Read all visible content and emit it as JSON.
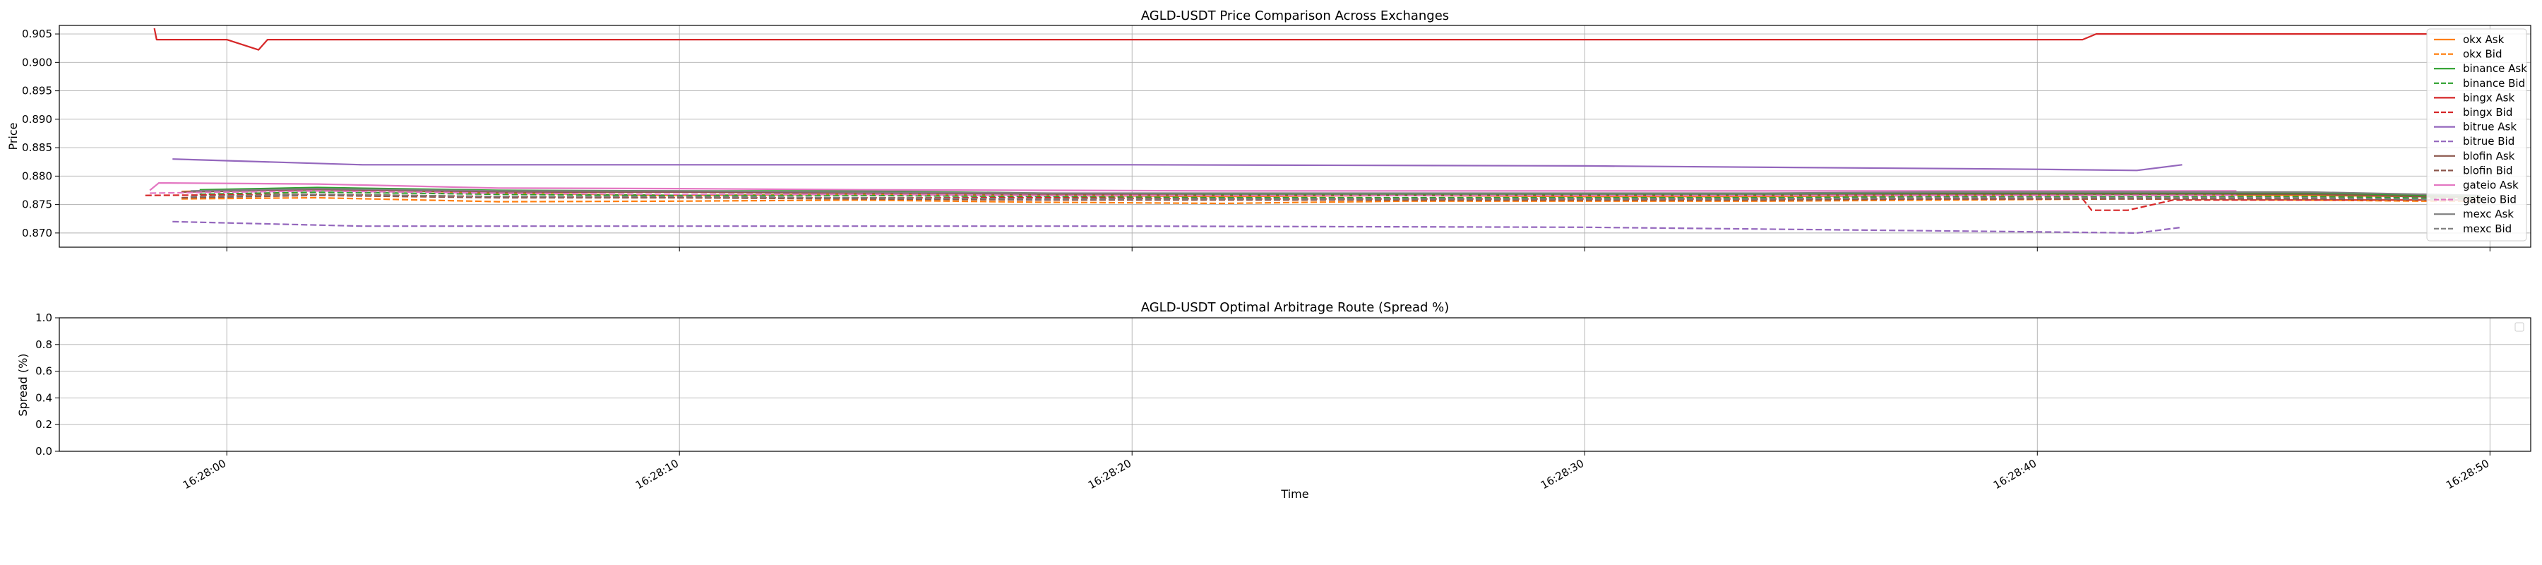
{
  "chart_data": [
    {
      "type": "line",
      "title": "AGLD-USDT Price Comparison Across Exchanges",
      "xlabel": "",
      "ylabel": "Price",
      "x_unit": "seconds",
      "xlim": [
        56.3,
        110.9
      ],
      "ylim": [
        0.8675,
        0.9065
      ],
      "yticks": [
        0.87,
        0.875,
        0.88,
        0.885,
        0.89,
        0.895,
        0.9,
        0.905
      ],
      "ytick_labels": [
        "0.870",
        "0.875",
        "0.880",
        "0.885",
        "0.890",
        "0.895",
        "0.900",
        "0.905"
      ],
      "xticks": [
        60,
        70,
        80,
        90,
        100,
        110
      ],
      "grid": true,
      "legend_position": "upper right",
      "series": [
        {
          "name": "okx Ask",
          "color": "#ff7f0e",
          "dash": "solid",
          "x": [
            59.0,
            62,
            66,
            70,
            74,
            78,
            82,
            86,
            90,
            94,
            98,
            102,
            106,
            108.5,
            109.8
          ],
          "y": [
            0.8773,
            0.8778,
            0.877,
            0.8766,
            0.8768,
            0.8766,
            0.8764,
            0.8766,
            0.8764,
            0.8764,
            0.8766,
            0.8768,
            0.8766,
            0.8764,
            0.8762
          ]
        },
        {
          "name": "okx Bid",
          "color": "#ff7f0e",
          "dash": "dashed",
          "x": [
            59.0,
            62,
            66,
            70,
            74,
            78,
            82,
            86,
            90,
            94,
            98,
            102,
            106,
            108.5,
            109.8
          ],
          "y": [
            0.876,
            0.8762,
            0.8755,
            0.8756,
            0.8758,
            0.8754,
            0.8752,
            0.8756,
            0.8756,
            0.8756,
            0.8758,
            0.876,
            0.8758,
            0.8756,
            0.8756
          ]
        },
        {
          "name": "binance Ask",
          "color": "#2ca02c",
          "dash": "solid",
          "x": [
            59.4,
            62,
            66,
            70,
            74,
            78,
            82,
            86,
            90,
            94,
            98,
            102,
            106,
            109.8
          ],
          "y": [
            0.8776,
            0.878,
            0.8775,
            0.8774,
            0.8774,
            0.877,
            0.8768,
            0.8768,
            0.8768,
            0.8768,
            0.877,
            0.877,
            0.877,
            0.8764
          ]
        },
        {
          "name": "binance Bid",
          "color": "#2ca02c",
          "dash": "dashed",
          "x": [
            59.4,
            62,
            66,
            70,
            74,
            78,
            82,
            86,
            90,
            94,
            98,
            102,
            106,
            109.8
          ],
          "y": [
            0.8768,
            0.8772,
            0.8768,
            0.8766,
            0.8766,
            0.8764,
            0.8762,
            0.8762,
            0.8762,
            0.8762,
            0.8764,
            0.8764,
            0.8764,
            0.876
          ]
        },
        {
          "name": "bingx Ask",
          "color": "#d62728",
          "dash": "solid",
          "x": [
            58.4,
            58.45,
            60.0,
            60.7,
            60.9,
            101.0,
            101.3,
            108.6
          ],
          "y": [
            0.906,
            0.904,
            0.904,
            0.9022,
            0.904,
            0.904,
            0.905,
            0.905
          ]
        },
        {
          "name": "bingx Bid",
          "color": "#d62728",
          "dash": "dashed",
          "x": [
            58.2,
            62,
            66,
            70,
            74,
            78,
            82,
            86,
            90,
            94,
            98,
            101.0,
            101.2,
            102.0,
            103.0,
            106,
            109.8
          ],
          "y": [
            0.8766,
            0.8768,
            0.8764,
            0.8762,
            0.8762,
            0.8762,
            0.876,
            0.876,
            0.876,
            0.876,
            0.876,
            0.876,
            0.874,
            0.874,
            0.8758,
            0.8758,
            0.8758
          ]
        },
        {
          "name": "bitrue Ask",
          "color": "#9467bd",
          "dash": "solid",
          "x": [
            58.8,
            63,
            70,
            80,
            90,
            100,
            102.2,
            103.2
          ],
          "y": [
            0.883,
            0.882,
            0.882,
            0.882,
            0.8818,
            0.8812,
            0.881,
            0.882
          ]
        },
        {
          "name": "bitrue Bid",
          "color": "#9467bd",
          "dash": "dashed",
          "x": [
            58.8,
            63,
            70,
            80,
            90,
            100,
            102.2,
            103.2
          ],
          "y": [
            0.872,
            0.8712,
            0.8712,
            0.8712,
            0.871,
            0.8702,
            0.87,
            0.871
          ]
        },
        {
          "name": "blofin Ask",
          "color": "#8c564b",
          "dash": "solid",
          "x": [
            59.0,
            62,
            66,
            70,
            74,
            78,
            82,
            86,
            90,
            94,
            98,
            102,
            106,
            109.8
          ],
          "y": [
            0.8772,
            0.8776,
            0.8772,
            0.8772,
            0.877,
            0.8768,
            0.8766,
            0.8766,
            0.8766,
            0.8766,
            0.8768,
            0.8768,
            0.8768,
            0.8762
          ]
        },
        {
          "name": "blofin Bid",
          "color": "#8c564b",
          "dash": "dashed",
          "x": [
            59.0,
            62,
            66,
            70,
            74,
            78,
            82,
            86,
            90,
            94,
            98,
            102,
            106,
            109.8
          ],
          "y": [
            0.8762,
            0.8766,
            0.8762,
            0.8762,
            0.876,
            0.8758,
            0.8758,
            0.8758,
            0.8758,
            0.8758,
            0.876,
            0.876,
            0.876,
            0.8758
          ]
        },
        {
          "name": "gateio Ask",
          "color": "#e377c2",
          "dash": "solid",
          "x": [
            58.3,
            58.5,
            62,
            66,
            70,
            74,
            78,
            82,
            86,
            90,
            94,
            98,
            102,
            104.4
          ],
          "y": [
            0.8775,
            0.8788,
            0.8786,
            0.8779,
            0.8778,
            0.8776,
            0.8775,
            0.8774,
            0.8774,
            0.8774,
            0.8774,
            0.8774,
            0.8774,
            0.8774
          ]
        },
        {
          "name": "gateio Bid",
          "color": "#e377c2",
          "dash": "dashed",
          "x": [
            58.3,
            62,
            66,
            70,
            74,
            78,
            82,
            86,
            90,
            94,
            98,
            102,
            104.4
          ],
          "y": [
            0.877,
            0.8774,
            0.877,
            0.8768,
            0.8768,
            0.8766,
            0.8766,
            0.8766,
            0.8766,
            0.8766,
            0.8766,
            0.8766,
            0.8766
          ]
        },
        {
          "name": "mexc Ask",
          "color": "#7f7f7f",
          "dash": "solid",
          "x": [
            59.2,
            62,
            66,
            70,
            74,
            78,
            82,
            86,
            90,
            94,
            98,
            102,
            106,
            109.8
          ],
          "y": [
            0.8774,
            0.8778,
            0.8774,
            0.8774,
            0.8772,
            0.877,
            0.877,
            0.877,
            0.877,
            0.877,
            0.8772,
            0.8772,
            0.8772,
            0.8766
          ]
        },
        {
          "name": "mexc Bid",
          "color": "#7f7f7f",
          "dash": "dashed",
          "x": [
            59.2,
            62,
            66,
            70,
            74,
            78,
            82,
            86,
            90,
            94,
            98,
            102,
            106,
            109.8
          ],
          "y": [
            0.8764,
            0.8768,
            0.8764,
            0.8764,
            0.8762,
            0.876,
            0.876,
            0.876,
            0.876,
            0.876,
            0.8762,
            0.8762,
            0.8762,
            0.8758
          ]
        }
      ]
    },
    {
      "type": "line",
      "title": "AGLD-USDT Optimal Arbitrage Route (Spread %)",
      "xlabel": "Time",
      "ylabel": "Spread (%)",
      "x_unit": "seconds",
      "xlim": [
        56.3,
        110.9
      ],
      "ylim": [
        0.0,
        1.0
      ],
      "yticks": [
        0.0,
        0.2,
        0.4,
        0.6,
        0.8,
        1.0
      ],
      "ytick_labels": [
        "0.0",
        "0.2",
        "0.4",
        "0.6",
        "0.8",
        "1.0"
      ],
      "xticks": [
        60,
        70,
        80,
        90,
        100,
        110
      ],
      "xtick_labels": [
        "16:28:00",
        "16:28:10",
        "16:28:20",
        "16:28:30",
        "16:28:40",
        "16:28:50"
      ],
      "grid": true,
      "legend_position": "upper right",
      "series": []
    }
  ]
}
